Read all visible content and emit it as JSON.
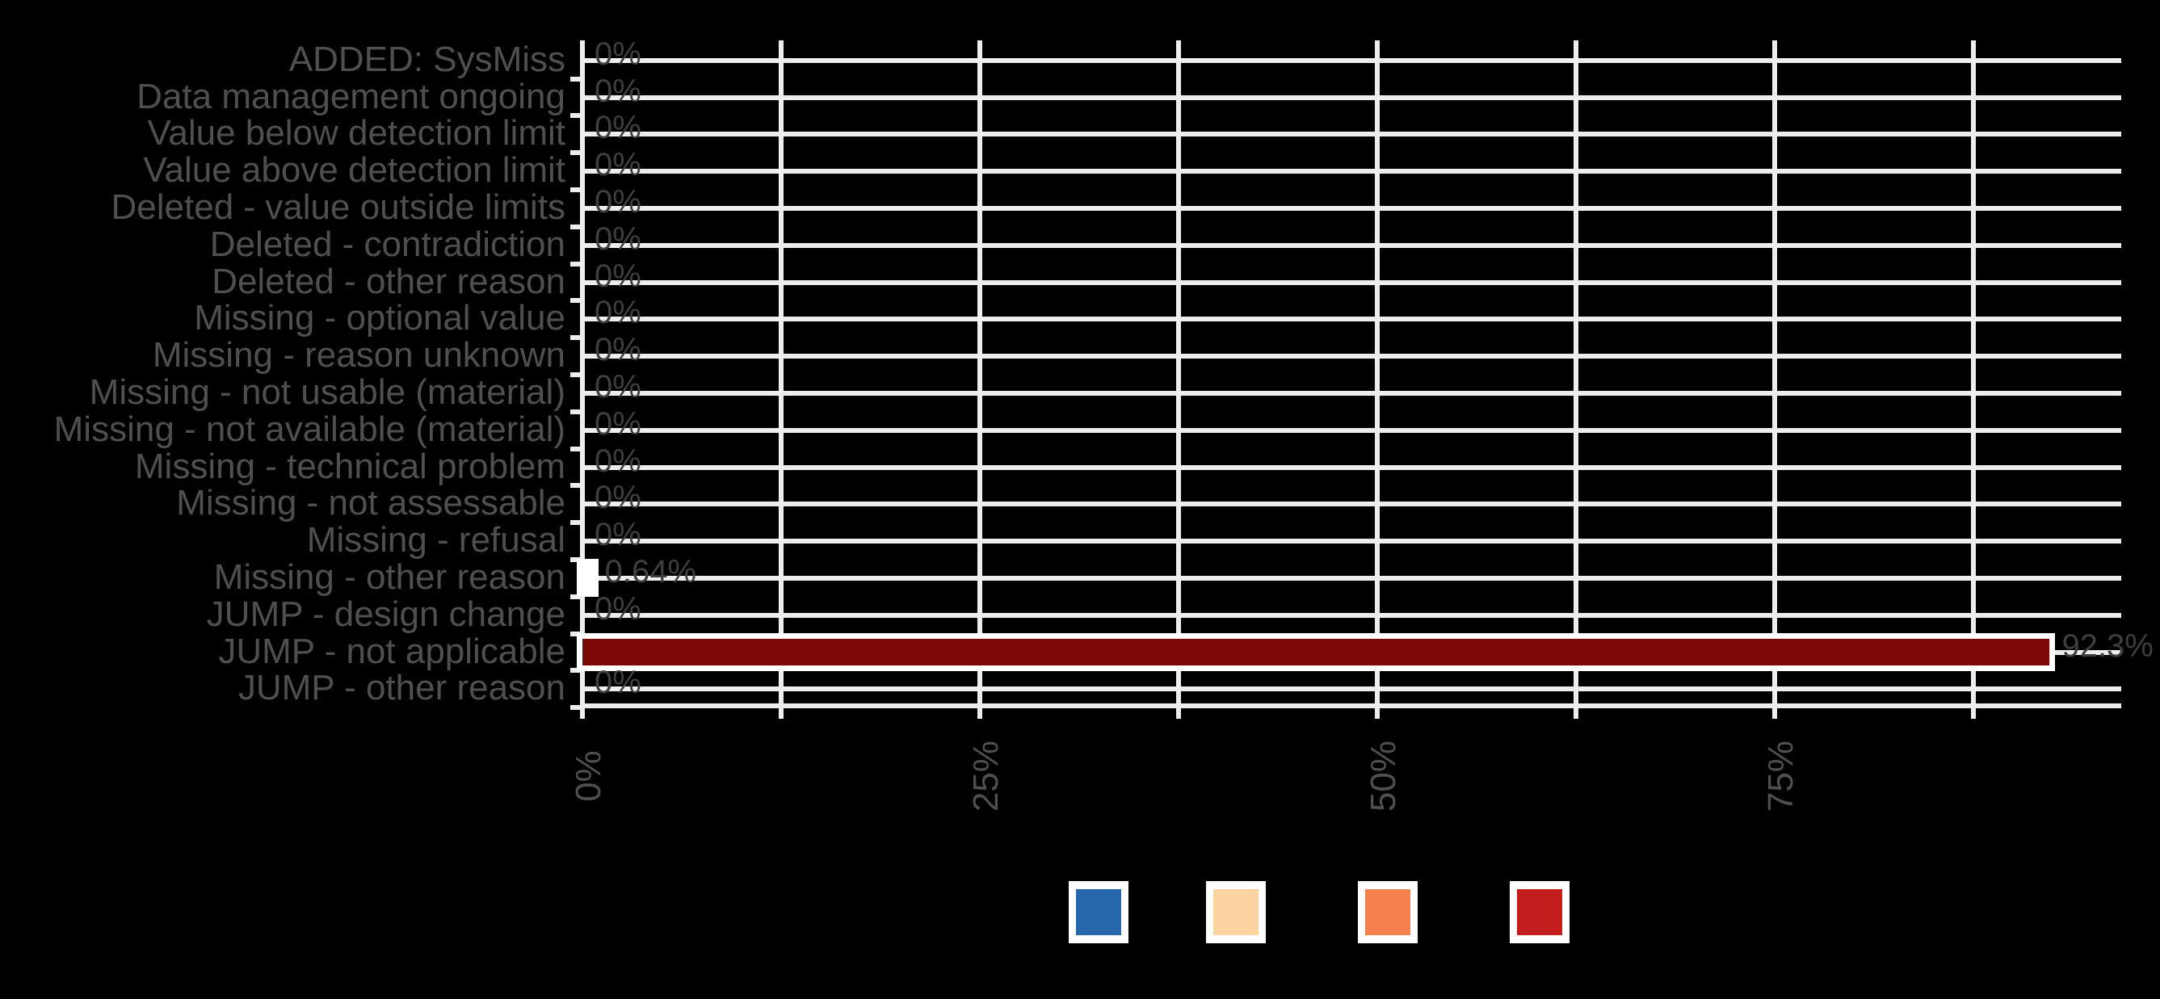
{
  "chart_data": {
    "type": "bar",
    "orientation": "horizontal",
    "title": "",
    "categories": [
      "ADDED: SysMiss",
      "Data management ongoing",
      "Value below detection limit",
      "Value above detection limit",
      "Deleted - value outside limits",
      "Deleted - contradiction",
      "Deleted - other reason",
      "Missing - optional value",
      "Missing - reason unknown",
      "Missing - not usable (material)",
      "Missing - not available (material)",
      "Missing - technical problem",
      "Missing - not assessable",
      "Missing - refusal",
      "Missing - other reason",
      "JUMP - design change",
      "JUMP - not applicable",
      "JUMP - other reason"
    ],
    "values": [
      0,
      0,
      0,
      0,
      0,
      0,
      0,
      0,
      0,
      0,
      0,
      0,
      0,
      0,
      0.64,
      0,
      92.3,
      0
    ],
    "bar_labels": [
      "0%",
      "0%",
      "0%",
      "0%",
      "0%",
      "0%",
      "0%",
      "0%",
      "0%",
      "0%",
      "0%",
      "0%",
      "0%",
      "0%",
      "0.64%",
      "0%",
      "92.3%",
      "0%"
    ],
    "xlabel": "",
    "ylabel": "",
    "xlim": [
      0,
      96.8
    ],
    "x_gridline_step_percent": 12.5,
    "x_tick_labels": [
      "0%",
      "25%",
      "50%",
      "75%"
    ],
    "x_tick_positions_percent": [
      0,
      25,
      50,
      75
    ],
    "grid": true,
    "legend": {
      "position": "bottom",
      "entries": [
        {
          "label": "",
          "color": "#2768ad"
        },
        {
          "label": "",
          "color": "#fdd3a2"
        },
        {
          "label": "",
          "color": "#f5814f"
        },
        {
          "label": "",
          "color": "#c41d1d"
        }
      ]
    }
  },
  "colors": {
    "background": "#000000",
    "gridline": "#ededed",
    "axis_text": "#4f4f4f",
    "value_label_text": "#3e3e3e",
    "bar_fill": "#7b0706",
    "bar_border": "#ffffff",
    "legend_key_background": "#ffffff"
  }
}
